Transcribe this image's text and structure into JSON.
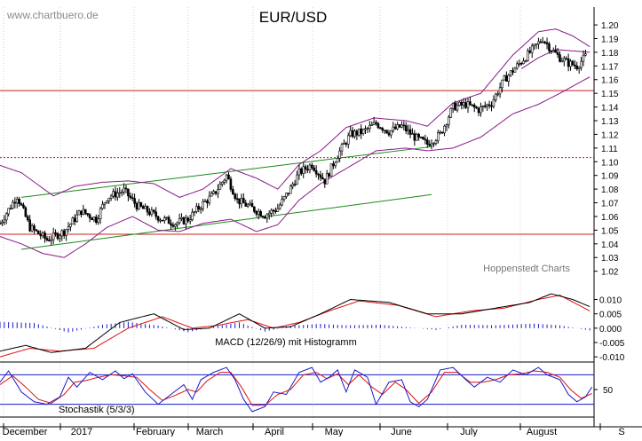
{
  "watermark": "www.chartbuero.de",
  "title": "EUR/USD",
  "credit": "Hoppenstedt Charts",
  "colors": {
    "price": "#000000",
    "bollinger": "#8a1a8a",
    "trend": "#1a8a1a",
    "resistance": "#cc1f1f",
    "macd_line": "#000000",
    "signal_line": "#dd1111",
    "histogram": "#1a1ac8",
    "stoch_k": "#1a1ac8",
    "stoch_d": "#dd1111",
    "axis": "#000000"
  },
  "chart_data": [
    {
      "type": "candlestick",
      "title": "EUR/USD",
      "x_months": [
        "December",
        "2017",
        "February",
        "March",
        "April",
        "May",
        "June",
        "July",
        "August",
        "S"
      ],
      "y_ticks": [
        "1.20",
        "1.19",
        "1.18",
        "1.17",
        "1.16",
        "1.15",
        "1.14",
        "1.13",
        "1.12",
        "1.11",
        "1.10",
        "1.09",
        "1.08",
        "1.07",
        "1.06",
        "1.05",
        "1.04",
        "1.03",
        "1.02"
      ],
      "ylim": [
        1.012,
        1.213
      ],
      "close_path": [
        {
          "day": 0,
          "v": 1.055
        },
        {
          "day": 8,
          "v": 1.075
        },
        {
          "day": 14,
          "v": 1.052
        },
        {
          "day": 22,
          "v": 1.043
        },
        {
          "day": 30,
          "v": 1.049
        },
        {
          "day": 38,
          "v": 1.064
        },
        {
          "day": 45,
          "v": 1.058
        },
        {
          "day": 50,
          "v": 1.074
        },
        {
          "day": 58,
          "v": 1.079
        },
        {
          "day": 64,
          "v": 1.068
        },
        {
          "day": 70,
          "v": 1.063
        },
        {
          "day": 76,
          "v": 1.058
        },
        {
          "day": 82,
          "v": 1.055
        },
        {
          "day": 88,
          "v": 1.058
        },
        {
          "day": 94,
          "v": 1.068
        },
        {
          "day": 100,
          "v": 1.076
        },
        {
          "day": 106,
          "v": 1.09
        },
        {
          "day": 111,
          "v": 1.072
        },
        {
          "day": 118,
          "v": 1.066
        },
        {
          "day": 124,
          "v": 1.061
        },
        {
          "day": 130,
          "v": 1.066
        },
        {
          "day": 135,
          "v": 1.078
        },
        {
          "day": 140,
          "v": 1.092
        },
        {
          "day": 146,
          "v": 1.098
        },
        {
          "day": 152,
          "v": 1.086
        },
        {
          "day": 158,
          "v": 1.105
        },
        {
          "day": 164,
          "v": 1.12
        },
        {
          "day": 170,
          "v": 1.122
        },
        {
          "day": 176,
          "v": 1.128
        },
        {
          "day": 182,
          "v": 1.122
        },
        {
          "day": 188,
          "v": 1.126
        },
        {
          "day": 194,
          "v": 1.118
        },
        {
          "day": 200,
          "v": 1.113
        },
        {
          "day": 206,
          "v": 1.12
        },
        {
          "day": 212,
          "v": 1.14
        },
        {
          "day": 218,
          "v": 1.142
        },
        {
          "day": 224,
          "v": 1.138
        },
        {
          "day": 230,
          "v": 1.143
        },
        {
          "day": 236,
          "v": 1.16
        },
        {
          "day": 242,
          "v": 1.17
        },
        {
          "day": 248,
          "v": 1.18
        },
        {
          "day": 254,
          "v": 1.19
        },
        {
          "day": 258,
          "v": 1.182
        },
        {
          "day": 262,
          "v": 1.176
        },
        {
          "day": 266,
          "v": 1.172
        },
        {
          "day": 270,
          "v": 1.17
        },
        {
          "day": 274,
          "v": 1.177
        }
      ],
      "bollinger_upper": [
        {
          "day": -5,
          "v": 1.1
        },
        {
          "day": 10,
          "v": 1.092
        },
        {
          "day": 25,
          "v": 1.075
        },
        {
          "day": 35,
          "v": 1.082
        },
        {
          "day": 48,
          "v": 1.085
        },
        {
          "day": 60,
          "v": 1.086
        },
        {
          "day": 72,
          "v": 1.084
        },
        {
          "day": 84,
          "v": 1.074
        },
        {
          "day": 95,
          "v": 1.08
        },
        {
          "day": 108,
          "v": 1.095
        },
        {
          "day": 120,
          "v": 1.088
        },
        {
          "day": 130,
          "v": 1.08
        },
        {
          "day": 140,
          "v": 1.098
        },
        {
          "day": 150,
          "v": 1.108
        },
        {
          "day": 162,
          "v": 1.125
        },
        {
          "day": 175,
          "v": 1.132
        },
        {
          "day": 190,
          "v": 1.13
        },
        {
          "day": 200,
          "v": 1.126
        },
        {
          "day": 212,
          "v": 1.143
        },
        {
          "day": 225,
          "v": 1.15
        },
        {
          "day": 240,
          "v": 1.178
        },
        {
          "day": 252,
          "v": 1.195
        },
        {
          "day": 260,
          "v": 1.197
        },
        {
          "day": 268,
          "v": 1.192
        },
        {
          "day": 276,
          "v": 1.184
        }
      ],
      "bollinger_lower": [
        {
          "day": -5,
          "v": 1.048
        },
        {
          "day": 10,
          "v": 1.04
        },
        {
          "day": 20,
          "v": 1.033
        },
        {
          "day": 30,
          "v": 1.03
        },
        {
          "day": 40,
          "v": 1.04
        },
        {
          "day": 50,
          "v": 1.052
        },
        {
          "day": 62,
          "v": 1.06
        },
        {
          "day": 74,
          "v": 1.05
        },
        {
          "day": 84,
          "v": 1.049
        },
        {
          "day": 95,
          "v": 1.055
        },
        {
          "day": 108,
          "v": 1.058
        },
        {
          "day": 120,
          "v": 1.049
        },
        {
          "day": 130,
          "v": 1.054
        },
        {
          "day": 140,
          "v": 1.072
        },
        {
          "day": 150,
          "v": 1.084
        },
        {
          "day": 162,
          "v": 1.095
        },
        {
          "day": 176,
          "v": 1.108
        },
        {
          "day": 190,
          "v": 1.11
        },
        {
          "day": 200,
          "v": 1.108
        },
        {
          "day": 212,
          "v": 1.11
        },
        {
          "day": 225,
          "v": 1.118
        },
        {
          "day": 240,
          "v": 1.135
        },
        {
          "day": 252,
          "v": 1.142
        },
        {
          "day": 262,
          "v": 1.15
        },
        {
          "day": 276,
          "v": 1.162
        }
      ],
      "bollinger_mid": [
        {
          "day": 244,
          "v": 1.168
        },
        {
          "day": 252,
          "v": 1.176
        },
        {
          "day": 260,
          "v": 1.182
        },
        {
          "day": 268,
          "v": 1.181
        },
        {
          "day": 276,
          "v": 1.18
        }
      ],
      "trend_lines": [
        {
          "from": {
            "day": 10,
            "v": 1.074
          },
          "to": {
            "day": 202,
            "v": 1.111
          }
        },
        {
          "from": {
            "day": 10,
            "v": 1.036
          },
          "to": {
            "day": 202,
            "v": 1.076
          }
        }
      ],
      "horizontal_lines": [
        {
          "v": 1.152,
          "style": "solid"
        },
        {
          "v": 1.103,
          "style": "dotted"
        },
        {
          "v": 1.047,
          "style": "solid"
        }
      ]
    },
    {
      "type": "line",
      "title": "MACD (12/26/9) mit Histogramm",
      "y_ticks": [
        "0.010",
        "0.005",
        "0.000",
        "-0.005",
        "-0.010"
      ],
      "ylim": [
        -0.0118,
        0.0148
      ],
      "macd": [
        {
          "day": 0,
          "v": -0.008
        },
        {
          "day": 12,
          "v": -0.006
        },
        {
          "day": 24,
          "v": -0.0085
        },
        {
          "day": 40,
          "v": -0.007
        },
        {
          "day": 56,
          "v": 0.002
        },
        {
          "day": 72,
          "v": 0.005
        },
        {
          "day": 86,
          "v": -0.0005
        },
        {
          "day": 98,
          "v": 0.0
        },
        {
          "day": 112,
          "v": 0.005
        },
        {
          "day": 124,
          "v": 0.0
        },
        {
          "day": 136,
          "v": 0.0005
        },
        {
          "day": 150,
          "v": 0.005
        },
        {
          "day": 164,
          "v": 0.01
        },
        {
          "day": 182,
          "v": 0.009
        },
        {
          "day": 200,
          "v": 0.005
        },
        {
          "day": 216,
          "v": 0.005
        },
        {
          "day": 232,
          "v": 0.007
        },
        {
          "day": 248,
          "v": 0.009
        },
        {
          "day": 258,
          "v": 0.012
        },
        {
          "day": 268,
          "v": 0.01
        },
        {
          "day": 276,
          "v": 0.0075
        }
      ],
      "signal": [
        {
          "day": 0,
          "v": -0.01
        },
        {
          "day": 14,
          "v": -0.007
        },
        {
          "day": 28,
          "v": -0.008
        },
        {
          "day": 44,
          "v": -0.007
        },
        {
          "day": 60,
          "v": 0.0
        },
        {
          "day": 76,
          "v": 0.004
        },
        {
          "day": 90,
          "v": 0.0
        },
        {
          "day": 102,
          "v": 0.001
        },
        {
          "day": 116,
          "v": 0.003
        },
        {
          "day": 128,
          "v": 0.0
        },
        {
          "day": 140,
          "v": 0.002
        },
        {
          "day": 154,
          "v": 0.006
        },
        {
          "day": 168,
          "v": 0.0095
        },
        {
          "day": 186,
          "v": 0.008
        },
        {
          "day": 204,
          "v": 0.004
        },
        {
          "day": 220,
          "v": 0.006
        },
        {
          "day": 236,
          "v": 0.007
        },
        {
          "day": 252,
          "v": 0.01
        },
        {
          "day": 262,
          "v": 0.0115
        },
        {
          "day": 276,
          "v": 0.006
        }
      ],
      "histogram": [
        {
          "day": 0,
          "v": 0.0022
        },
        {
          "day": 16,
          "v": 0.0018
        },
        {
          "day": 32,
          "v": -0.0015
        },
        {
          "day": 48,
          "v": 0.0012
        },
        {
          "day": 60,
          "v": 0.0022
        },
        {
          "day": 74,
          "v": 0.0009
        },
        {
          "day": 88,
          "v": -0.0014
        },
        {
          "day": 100,
          "v": 0.0005
        },
        {
          "day": 112,
          "v": 0.002
        },
        {
          "day": 124,
          "v": -0.0012
        },
        {
          "day": 136,
          "v": 0.0008
        },
        {
          "day": 150,
          "v": 0.0015
        },
        {
          "day": 162,
          "v": 0.001
        },
        {
          "day": 178,
          "v": 0.0012
        },
        {
          "day": 190,
          "v": 0.0004
        },
        {
          "day": 204,
          "v": -0.0006
        },
        {
          "day": 216,
          "v": 0.0012
        },
        {
          "day": 232,
          "v": 0.001
        },
        {
          "day": 250,
          "v": 0.0016
        },
        {
          "day": 262,
          "v": 0.001
        },
        {
          "day": 276,
          "v": -0.0008
        }
      ]
    },
    {
      "type": "line",
      "title": "Stochastik (5/3/3)",
      "y_ticks": [
        "50"
      ],
      "ylim": [
        -6,
        106
      ],
      "reference_lines": [
        80,
        20
      ],
      "k": [
        {
          "day": 0,
          "v": 65
        },
        {
          "day": 4,
          "v": 88
        },
        {
          "day": 10,
          "v": 45
        },
        {
          "day": 16,
          "v": 25
        },
        {
          "day": 22,
          "v": 20
        },
        {
          "day": 28,
          "v": 35
        },
        {
          "day": 32,
          "v": 75
        },
        {
          "day": 36,
          "v": 55
        },
        {
          "day": 42,
          "v": 85
        },
        {
          "day": 48,
          "v": 70
        },
        {
          "day": 54,
          "v": 88
        },
        {
          "day": 58,
          "v": 72
        },
        {
          "day": 62,
          "v": 82
        },
        {
          "day": 68,
          "v": 45
        },
        {
          "day": 74,
          "v": 20
        },
        {
          "day": 80,
          "v": 40
        },
        {
          "day": 86,
          "v": 60
        },
        {
          "day": 90,
          "v": 30
        },
        {
          "day": 94,
          "v": 70
        },
        {
          "day": 100,
          "v": 85
        },
        {
          "day": 106,
          "v": 95
        },
        {
          "day": 110,
          "v": 70
        },
        {
          "day": 114,
          "v": 30
        },
        {
          "day": 118,
          "v": 5
        },
        {
          "day": 124,
          "v": 15
        },
        {
          "day": 128,
          "v": 45
        },
        {
          "day": 134,
          "v": 40
        },
        {
          "day": 140,
          "v": 85
        },
        {
          "day": 146,
          "v": 95
        },
        {
          "day": 150,
          "v": 65
        },
        {
          "day": 154,
          "v": 75
        },
        {
          "day": 158,
          "v": 90
        },
        {
          "day": 162,
          "v": 45
        },
        {
          "day": 166,
          "v": 90
        },
        {
          "day": 172,
          "v": 75
        },
        {
          "day": 176,
          "v": 20
        },
        {
          "day": 182,
          "v": 65
        },
        {
          "day": 188,
          "v": 70
        },
        {
          "day": 192,
          "v": 25
        },
        {
          "day": 196,
          "v": 15
        },
        {
          "day": 200,
          "v": 30
        },
        {
          "day": 206,
          "v": 90
        },
        {
          "day": 212,
          "v": 95
        },
        {
          "day": 218,
          "v": 70
        },
        {
          "day": 222,
          "v": 55
        },
        {
          "day": 228,
          "v": 75
        },
        {
          "day": 234,
          "v": 65
        },
        {
          "day": 240,
          "v": 90
        },
        {
          "day": 246,
          "v": 80
        },
        {
          "day": 252,
          "v": 95
        },
        {
          "day": 256,
          "v": 80
        },
        {
          "day": 262,
          "v": 70
        },
        {
          "day": 266,
          "v": 40
        },
        {
          "day": 270,
          "v": 25
        },
        {
          "day": 274,
          "v": 35
        },
        {
          "day": 277,
          "v": 55
        }
      ],
      "d": [
        {
          "day": 0,
          "v": 60
        },
        {
          "day": 6,
          "v": 78
        },
        {
          "day": 12,
          "v": 55
        },
        {
          "day": 18,
          "v": 30
        },
        {
          "day": 24,
          "v": 22
        },
        {
          "day": 30,
          "v": 40
        },
        {
          "day": 35,
          "v": 65
        },
        {
          "day": 40,
          "v": 68
        },
        {
          "day": 46,
          "v": 75
        },
        {
          "day": 52,
          "v": 80
        },
        {
          "day": 58,
          "v": 78
        },
        {
          "day": 64,
          "v": 75
        },
        {
          "day": 70,
          "v": 50
        },
        {
          "day": 76,
          "v": 28
        },
        {
          "day": 82,
          "v": 38
        },
        {
          "day": 88,
          "v": 50
        },
        {
          "day": 92,
          "v": 45
        },
        {
          "day": 97,
          "v": 68
        },
        {
          "day": 103,
          "v": 85
        },
        {
          "day": 108,
          "v": 85
        },
        {
          "day": 113,
          "v": 55
        },
        {
          "day": 118,
          "v": 18
        },
        {
          "day": 124,
          "v": 18
        },
        {
          "day": 130,
          "v": 40
        },
        {
          "day": 136,
          "v": 50
        },
        {
          "day": 142,
          "v": 80
        },
        {
          "day": 148,
          "v": 85
        },
        {
          "day": 153,
          "v": 72
        },
        {
          "day": 158,
          "v": 82
        },
        {
          "day": 163,
          "v": 60
        },
        {
          "day": 168,
          "v": 80
        },
        {
          "day": 174,
          "v": 55
        },
        {
          "day": 179,
          "v": 40
        },
        {
          "day": 185,
          "v": 65
        },
        {
          "day": 190,
          "v": 50
        },
        {
          "day": 196,
          "v": 22
        },
        {
          "day": 202,
          "v": 45
        },
        {
          "day": 208,
          "v": 85
        },
        {
          "day": 214,
          "v": 85
        },
        {
          "day": 220,
          "v": 65
        },
        {
          "day": 226,
          "v": 65
        },
        {
          "day": 232,
          "v": 70
        },
        {
          "day": 238,
          "v": 80
        },
        {
          "day": 244,
          "v": 82
        },
        {
          "day": 250,
          "v": 88
        },
        {
          "day": 256,
          "v": 85
        },
        {
          "day": 262,
          "v": 75
        },
        {
          "day": 267,
          "v": 50
        },
        {
          "day": 272,
          "v": 32
        },
        {
          "day": 277,
          "v": 42
        }
      ]
    }
  ]
}
